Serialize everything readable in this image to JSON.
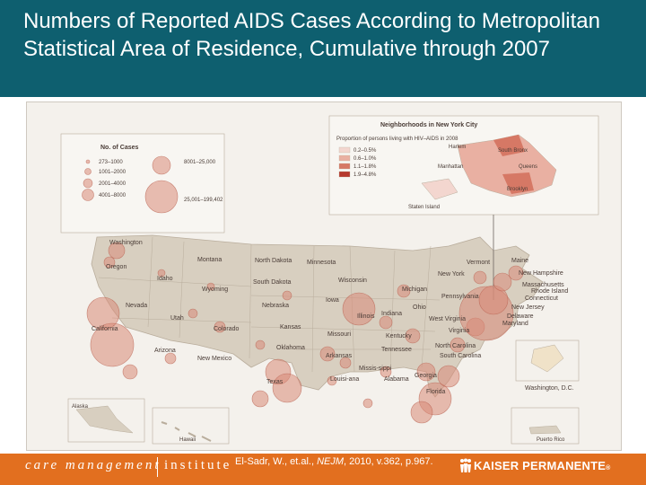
{
  "title": "Numbers of Reported AIDS Cases According to Metropolitan Statistical Area of Residence, Cumulative through 2007",
  "legend": {
    "title": "No. of Cases",
    "items": [
      "273–1000",
      "1001–2000",
      "2001–4000",
      "4001–8000",
      "8001–25,000",
      "25,001–199,402"
    ]
  },
  "nyc_inset": {
    "title": "Neighborhoods in New York City",
    "subtitle": "Proportion of persons living with HIV–AIDS in 2008",
    "ranges": [
      "0.2–0.5%",
      "0.6–1.0%",
      "1.1–1.8%",
      "1.9–4.8%"
    ],
    "range_colors": [
      "#f3d6cf",
      "#e9b0a2",
      "#d67865",
      "#b6392d"
    ],
    "neighborhoods": [
      "Harlem",
      "South Bronx",
      "Manhattan",
      "Queens",
      "Brooklyn",
      "Staten Island"
    ]
  },
  "states": {
    "washington": "Washington",
    "oregon": "Oregon",
    "idaho": "Idaho",
    "montana": "Montana",
    "wyoming": "Wyoming",
    "nevada": "Nevada",
    "california": "California",
    "utah": "Utah",
    "colorado": "Colorado",
    "arizona": "Arizona",
    "new_mexico": "New Mexico",
    "north_dakota": "North Dakota",
    "south_dakota": "South Dakota",
    "nebraska": "Nebraska",
    "kansas": "Kansas",
    "oklahoma": "Oklahoma",
    "texas": "Texas",
    "minnesota": "Minnesota",
    "iowa": "Iowa",
    "missouri": "Missouri",
    "arkansas": "Arkansas",
    "louisiana": "Louisi-ana",
    "wisconsin": "Wisconsin",
    "illinois": "Illinois",
    "michigan": "Michigan",
    "indiana": "Indiana",
    "ohio": "Ohio",
    "kentucky": "Kentucky",
    "tennessee": "Tennessee",
    "mississippi": "Missis-sippi",
    "alabama": "Alabama",
    "georgia": "Georgia",
    "florida": "Florida",
    "south_carolina": "South Carolina",
    "north_carolina": "North Carolina",
    "virginia": "Virginia",
    "west_virginia": "West Virginia",
    "pennsylvania": "Pennsylvania",
    "new_york": "New York",
    "vermont": "Vermont",
    "maine": "Maine",
    "new_hampshire": "New Hampshire",
    "massachusetts": "Massachusetts",
    "rhode_island": "Rhode Island",
    "connecticut": "Connecticut",
    "new_jersey": "New Jersey",
    "delaware": "Delaware",
    "maryland": "Maryland",
    "washington_dc": "Washington, D.C.",
    "alaska": "Alaska",
    "hawaii": "Hawaii",
    "puerto_rico": "Puerto Rico"
  },
  "footer": {
    "institute_left": "care management",
    "institute_right": "institute",
    "citation_pre": "El-Sadr, W., et.al., ",
    "citation_journal": "NEJM",
    "citation_post": ", 2010, v.362, p.967.",
    "brand": "KAISER PERMANENTE",
    "brand_mark": "®"
  },
  "colors": {
    "title_bar": "#0e5f6f",
    "footer": "#e26f1f",
    "map_land": "#d8cfc0",
    "bubble": "#d98a78"
  }
}
